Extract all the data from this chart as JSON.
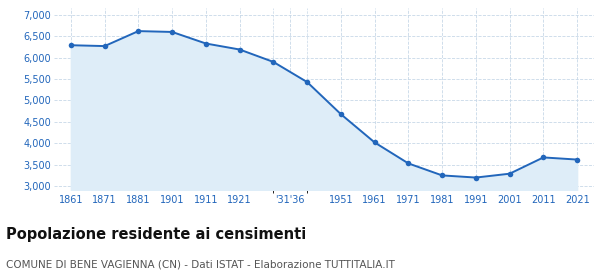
{
  "population": [
    6290,
    6270,
    6620,
    6600,
    6330,
    6190,
    5900,
    5430,
    4680,
    4020,
    3530,
    3250,
    3200,
    3290,
    3670,
    3620
  ],
  "x_positions": [
    0,
    1,
    2,
    3,
    4,
    5,
    6,
    7,
    8,
    9,
    10,
    11,
    12,
    13,
    14,
    15
  ],
  "x_tick_positions": [
    0,
    1,
    2,
    3,
    4,
    5,
    6.5,
    8,
    9,
    10,
    11,
    12,
    13,
    14,
    15
  ],
  "x_tick_labels": [
    "1861",
    "1871",
    "1881",
    "1901",
    "1911",
    "1921",
    "'31'36",
    "1951",
    "1961",
    "1971",
    "1981",
    "1991",
    "2001",
    "2011",
    "2021"
  ],
  "line_color": "#2266bb",
  "fill_color": "#deedf8",
  "marker_color": "#2266bb",
  "background_color": "#ffffff",
  "grid_color": "#c8d8e8",
  "title": "Popolazione residente ai censimenti",
  "subtitle": "COMUNE DI BENE VAGIENNA (CN) - Dati ISTAT - Elaborazione TUTTITALIA.IT",
  "title_fontsize": 10.5,
  "subtitle_fontsize": 7.5,
  "ylabel_ticks": [
    3000,
    3500,
    4000,
    4500,
    5000,
    5500,
    6000,
    6500,
    7000
  ],
  "ylim": [
    2900,
    7150
  ],
  "axis_label_color": "#2266bb",
  "fill_bottom": 2900
}
